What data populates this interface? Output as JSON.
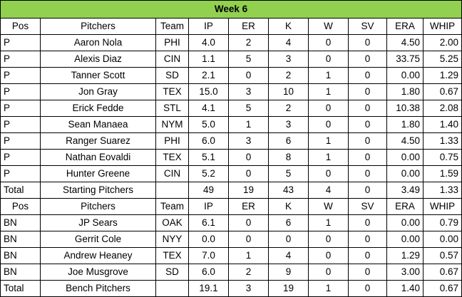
{
  "title": "Week 6",
  "header": [
    "Pos",
    "Pitchers",
    "Team",
    "IP",
    "ER",
    "K",
    "W",
    "SV",
    "ERA",
    "WHIP"
  ],
  "starting": [
    {
      "pos": "P",
      "name": "Aaron Nola",
      "team": "PHI",
      "ip": "4.0",
      "er": "2",
      "k": "4",
      "w": "0",
      "sv": "0",
      "era": "4.50",
      "whip": "2.00"
    },
    {
      "pos": "P",
      "name": "Alexis Diaz",
      "team": "CIN",
      "ip": "1.1",
      "er": "5",
      "k": "3",
      "w": "0",
      "sv": "0",
      "era": "33.75",
      "whip": "5.25"
    },
    {
      "pos": "P",
      "name": "Tanner Scott",
      "team": "SD",
      "ip": "2.1",
      "er": "0",
      "k": "2",
      "w": "1",
      "sv": "0",
      "era": "0.00",
      "whip": "1.29"
    },
    {
      "pos": "P",
      "name": "Jon Gray",
      "team": "TEX",
      "ip": "15.0",
      "er": "3",
      "k": "10",
      "w": "1",
      "sv": "0",
      "era": "1.80",
      "whip": "0.67"
    },
    {
      "pos": "P",
      "name": "Erick Fedde",
      "team": "STL",
      "ip": "4.1",
      "er": "5",
      "k": "2",
      "w": "0",
      "sv": "0",
      "era": "10.38",
      "whip": "2.08"
    },
    {
      "pos": "P",
      "name": "Sean Manaea",
      "team": "NYM",
      "ip": "5.0",
      "er": "1",
      "k": "3",
      "w": "0",
      "sv": "0",
      "era": "1.80",
      "whip": "1.40"
    },
    {
      "pos": "P",
      "name": "Ranger Suarez",
      "team": "PHI",
      "ip": "6.0",
      "er": "3",
      "k": "6",
      "w": "1",
      "sv": "0",
      "era": "4.50",
      "whip": "1.33"
    },
    {
      "pos": "P",
      "name": "Nathan Eovaldi",
      "team": "TEX",
      "ip": "5.1",
      "er": "0",
      "k": "8",
      "w": "1",
      "sv": "0",
      "era": "0.00",
      "whip": "0.75"
    },
    {
      "pos": "P",
      "name": "Hunter Greene",
      "team": "CIN",
      "ip": "5.2",
      "er": "0",
      "k": "5",
      "w": "0",
      "sv": "0",
      "era": "0.00",
      "whip": "1.59"
    }
  ],
  "starting_total": {
    "pos": "Total",
    "name": "Starting Pitchers",
    "team": "",
    "ip": "49",
    "er": "19",
    "k": "43",
    "w": "4",
    "sv": "0",
    "era": "3.49",
    "whip": "1.33"
  },
  "bench": [
    {
      "pos": "BN",
      "name": "JP Sears",
      "team": "OAK",
      "ip": "6.1",
      "er": "0",
      "k": "6",
      "w": "1",
      "sv": "0",
      "era": "0.00",
      "whip": "0.79"
    },
    {
      "pos": "BN",
      "name": "Gerrit Cole",
      "team": "NYY",
      "ip": "0.0",
      "er": "0",
      "k": "0",
      "w": "0",
      "sv": "0",
      "era": "0.00",
      "whip": "0.00"
    },
    {
      "pos": "BN",
      "name": "Andrew Heaney",
      "team": "TEX",
      "ip": "7.0",
      "er": "1",
      "k": "4",
      "w": "0",
      "sv": "0",
      "era": "1.29",
      "whip": "0.57"
    },
    {
      "pos": "BN",
      "name": "Joe Musgrove",
      "team": "SD",
      "ip": "6.0",
      "er": "2",
      "k": "9",
      "w": "0",
      "sv": "0",
      "era": "3.00",
      "whip": "0.67"
    }
  ],
  "bench_total": {
    "pos": "Total",
    "name": "Bench Pitchers",
    "team": "",
    "ip": "19.1",
    "er": "3",
    "k": "19",
    "w": "1",
    "sv": "0",
    "era": "1.40",
    "whip": "0.67"
  }
}
